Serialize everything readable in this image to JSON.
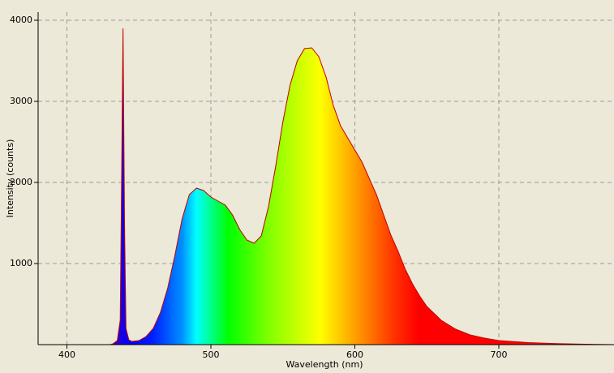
{
  "chart_data": {
    "type": "area",
    "x_label": "Wavelength (nm)",
    "y_label": "Intensity (counts)",
    "x": [
      380,
      430,
      432,
      435,
      437,
      438,
      439,
      440,
      441,
      443,
      445,
      450,
      455,
      460,
      465,
      470,
      475,
      480,
      485,
      490,
      495,
      500,
      505,
      510,
      515,
      520,
      525,
      530,
      535,
      540,
      545,
      550,
      555,
      560,
      565,
      570,
      575,
      580,
      585,
      590,
      595,
      600,
      605,
      610,
      615,
      620,
      625,
      630,
      635,
      640,
      645,
      650,
      660,
      670,
      680,
      690,
      700,
      720,
      740,
      760,
      780
    ],
    "values": [
      0,
      0,
      10,
      50,
      300,
      2000,
      3900,
      1500,
      200,
      60,
      40,
      50,
      100,
      200,
      400,
      700,
      1100,
      1550,
      1850,
      1930,
      1900,
      1820,
      1770,
      1720,
      1600,
      1420,
      1290,
      1250,
      1340,
      1700,
      2200,
      2750,
      3200,
      3500,
      3650,
      3660,
      3550,
      3300,
      2950,
      2700,
      2550,
      2400,
      2250,
      2050,
      1850,
      1600,
      1350,
      1150,
      930,
      750,
      600,
      470,
      300,
      190,
      120,
      80,
      50,
      25,
      12,
      5,
      0
    ],
    "line_color": "#c00000",
    "xlim": [
      380,
      780
    ],
    "xticks": [
      400,
      500,
      600,
      700
    ],
    "ylim": [
      0,
      4100
    ],
    "yticks": [
      1000,
      2000,
      3000,
      4000
    ],
    "grid": true
  }
}
